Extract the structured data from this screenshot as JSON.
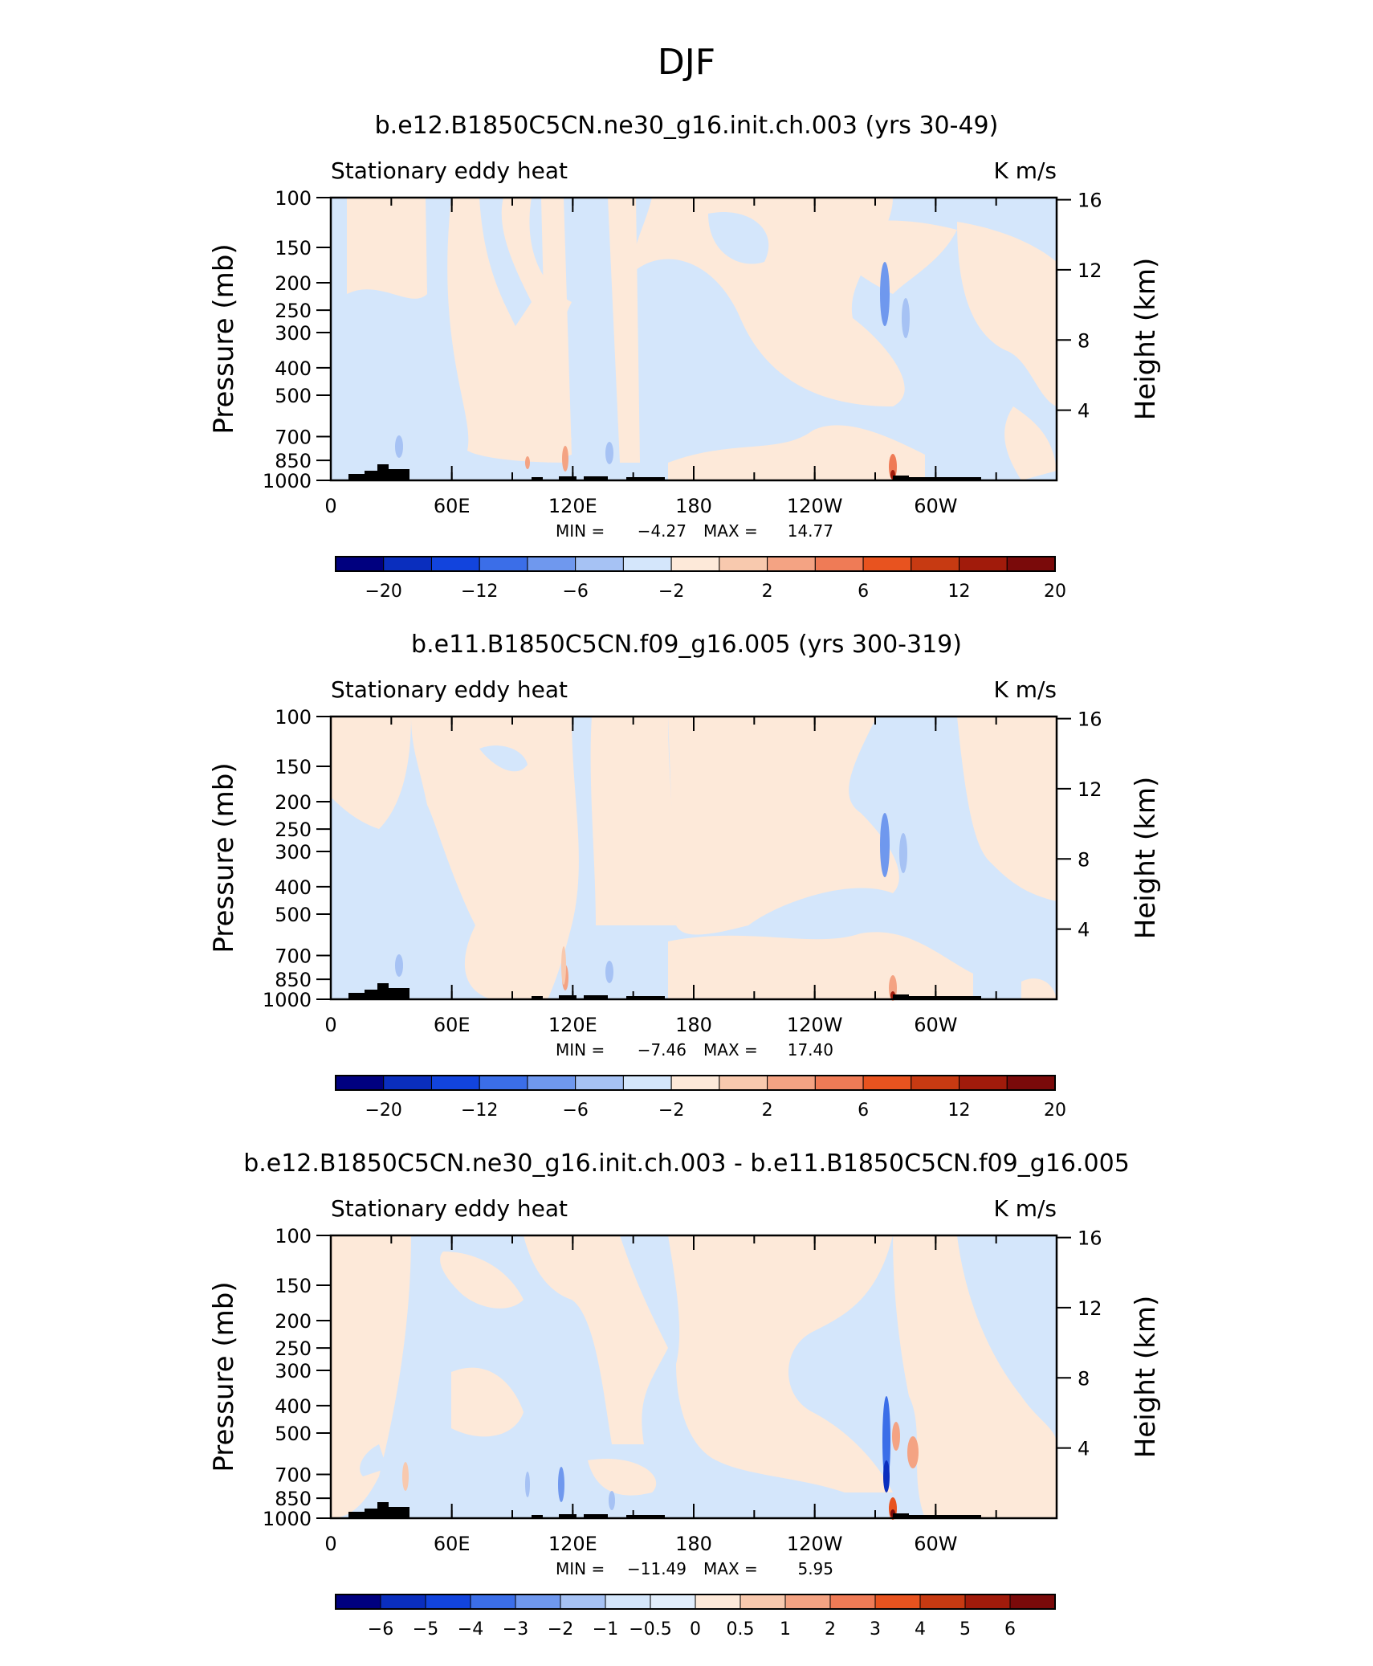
{
  "figure": {
    "title": "DJF"
  },
  "chart_data": [
    {
      "type": "heatmap",
      "title": "b.e12.B1850C5CN.ne30_g16.init.ch.003 (yrs 30-49)",
      "left_label": "Stationary eddy heat",
      "right_label": "K m/s",
      "ylabel": "Pressure (mb)",
      "y2label": "Height (km)",
      "x_ticks": [
        "0",
        "60E",
        "120E",
        "180",
        "120W",
        "60W"
      ],
      "x_tick_lon": [
        0,
        60,
        120,
        180,
        240,
        300
      ],
      "xlim": [
        0,
        360
      ],
      "y_ticks": [
        "100",
        "150",
        "200",
        "250",
        "300",
        "400",
        "500",
        "700",
        "850",
        "1000"
      ],
      "y_tick_values": [
        100,
        150,
        200,
        250,
        300,
        400,
        500,
        700,
        850,
        1000
      ],
      "ylim": [
        1000,
        100
      ],
      "y_scale": "log",
      "y2_ticks": [
        "4",
        "8",
        "12",
        "16"
      ],
      "y2_tick_values": [
        4,
        8,
        12,
        16
      ],
      "min_label": "MIN =",
      "min_value": "−4.27",
      "max_label": "MAX =",
      "max_value": "14.77",
      "colorbar_labels": [
        "−20",
        "−12",
        "−6",
        "−2",
        "2",
        "6",
        "12",
        "20"
      ],
      "colorbar_label_boundaries": [
        1,
        3,
        5,
        7,
        9,
        11,
        13,
        15
      ],
      "colorbar_colors": [
        "#00007f",
        "#0a2ebe",
        "#1244dd",
        "#3b6ee8",
        "#6f98ee",
        "#a6c2f4",
        "#d4e6fb",
        "#fde9d9",
        "#f8c9ae",
        "#f4a383",
        "#ef7b56",
        "#e8531f",
        "#c73a12",
        "#a11b0b",
        "#7a0a0a"
      ]
    },
    {
      "type": "heatmap",
      "title": "b.e11.B1850C5CN.f09_g16.005 (yrs 300-319)",
      "left_label": "Stationary eddy heat",
      "right_label": "K m/s",
      "ylabel": "Pressure (mb)",
      "y2label": "Height (km)",
      "x_ticks": [
        "0",
        "60E",
        "120E",
        "180",
        "120W",
        "60W"
      ],
      "x_tick_lon": [
        0,
        60,
        120,
        180,
        240,
        300
      ],
      "xlim": [
        0,
        360
      ],
      "y_ticks": [
        "100",
        "150",
        "200",
        "250",
        "300",
        "400",
        "500",
        "700",
        "850",
        "1000"
      ],
      "y_tick_values": [
        100,
        150,
        200,
        250,
        300,
        400,
        500,
        700,
        850,
        1000
      ],
      "ylim": [
        1000,
        100
      ],
      "y_scale": "log",
      "y2_ticks": [
        "4",
        "8",
        "12",
        "16"
      ],
      "y2_tick_values": [
        4,
        8,
        12,
        16
      ],
      "min_label": "MIN =",
      "min_value": "−7.46",
      "max_label": "MAX =",
      "max_value": "17.40",
      "colorbar_labels": [
        "−20",
        "−12",
        "−6",
        "−2",
        "2",
        "6",
        "12",
        "20"
      ],
      "colorbar_label_boundaries": [
        1,
        3,
        5,
        7,
        9,
        11,
        13,
        15
      ],
      "colorbar_colors": [
        "#00007f",
        "#0a2ebe",
        "#1244dd",
        "#3b6ee8",
        "#6f98ee",
        "#a6c2f4",
        "#d4e6fb",
        "#fde9d9",
        "#f8c9ae",
        "#f4a383",
        "#ef7b56",
        "#e8531f",
        "#c73a12",
        "#a11b0b",
        "#7a0a0a"
      ]
    },
    {
      "type": "heatmap",
      "title": "b.e12.B1850C5CN.ne30_g16.init.ch.003 - b.e11.B1850C5CN.f09_g16.005",
      "left_label": "Stationary eddy heat",
      "right_label": "K m/s",
      "ylabel": "Pressure (mb)",
      "y2label": "Height (km)",
      "x_ticks": [
        "0",
        "60E",
        "120E",
        "180",
        "120W",
        "60W"
      ],
      "x_tick_lon": [
        0,
        60,
        120,
        180,
        240,
        300
      ],
      "xlim": [
        0,
        360
      ],
      "y_ticks": [
        "100",
        "150",
        "200",
        "250",
        "300",
        "400",
        "500",
        "700",
        "850",
        "1000"
      ],
      "y_tick_values": [
        100,
        150,
        200,
        250,
        300,
        400,
        500,
        700,
        850,
        1000
      ],
      "ylim": [
        1000,
        100
      ],
      "y_scale": "log",
      "y2_ticks": [
        "4",
        "8",
        "12",
        "16"
      ],
      "y2_tick_values": [
        4,
        8,
        12,
        16
      ],
      "min_label": "MIN =",
      "min_value": "−11.49",
      "max_label": "MAX =",
      "max_value": "5.95",
      "colorbar_labels": [
        "−6",
        "−5",
        "−4",
        "−3",
        "−2",
        "−1",
        "−0.5",
        "0",
        "0.5",
        "1",
        "2",
        "3",
        "4",
        "5",
        "6"
      ],
      "colorbar_label_boundaries": [
        1,
        2,
        3,
        4,
        5,
        6,
        7,
        8,
        9,
        10,
        11,
        12,
        13,
        14,
        15
      ],
      "colorbar_colors": [
        "#00007f",
        "#0a2ebe",
        "#1244dd",
        "#3b6ee8",
        "#6f98ee",
        "#a6c2f4",
        "#d4e6fb",
        "#e2eefc",
        "#fde9d9",
        "#f8c9ae",
        "#f4a383",
        "#ef7b56",
        "#e8531f",
        "#c73a12",
        "#a11b0b",
        "#7a0a0a"
      ]
    }
  ]
}
